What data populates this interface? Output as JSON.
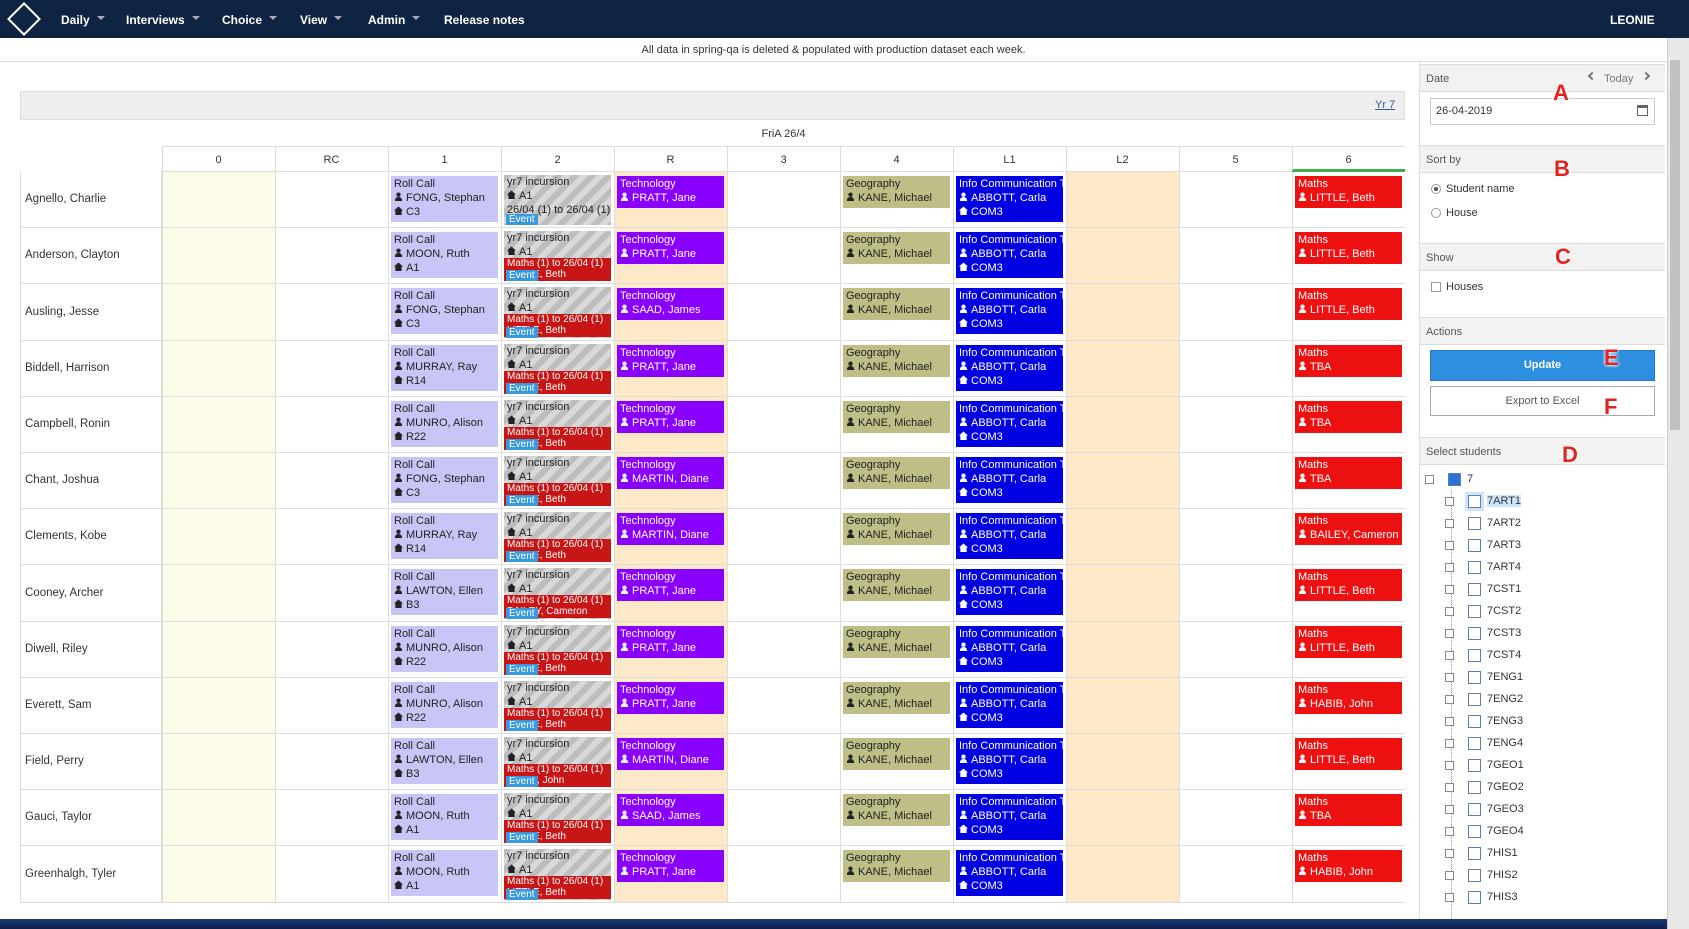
{
  "nav": {
    "items": [
      "Daily",
      "Interviews",
      "Choice",
      "View",
      "Admin",
      "Release notes"
    ],
    "user": "LEONIE"
  },
  "banner": "All data in spring-qa is deleted & populated with production dataset each week.",
  "grid": {
    "group_link": "Yr 7",
    "day": "FriA 26/4",
    "periods": [
      "0",
      "RC",
      "1",
      "2",
      "R",
      "3",
      "4",
      "L1",
      "L2",
      "5",
      "6"
    ],
    "rows": [
      {
        "name": "Agnello, Charlie",
        "cells": [
          null,
          null,
          {
            "kind": "rollcall",
            "lines": [
              "Roll Call",
              "FONG, Stephan",
              "C3"
            ]
          },
          {
            "kind": "incursion",
            "lines": [
              "yr7 incursion",
              "A1",
              "26/04 (1) to 26/04 (1)"
            ],
            "badge": "Event"
          },
          {
            "kind": "technology",
            "lines": [
              "Technology",
              "PRATT, Jane"
            ]
          },
          null,
          {
            "kind": "geography",
            "lines": [
              "Geography",
              "KANE, Michael"
            ]
          },
          {
            "kind": "ict",
            "lines": [
              "Info Communication Tech",
              "ABBOTT, Carla",
              "COM3"
            ]
          },
          null,
          null,
          {
            "kind": "maths",
            "lines": [
              "Maths",
              "LITTLE, Beth"
            ]
          }
        ]
      },
      {
        "name": "Anderson, Clayton",
        "cells": [
          null,
          null,
          {
            "kind": "rollcall",
            "lines": [
              "Roll Call",
              "MOON, Ruth",
              "A1"
            ]
          },
          {
            "kind": "incursion",
            "lines": [
              "yr7 incursion",
              "A1"
            ],
            "clash": [
              "Maths (1) to 26/04 (1)",
              "LITTLE, Beth"
            ],
            "badge": "Event"
          },
          {
            "kind": "technology",
            "lines": [
              "Technology",
              "PRATT, Jane"
            ]
          },
          null,
          {
            "kind": "geography",
            "lines": [
              "Geography",
              "KANE, Michael"
            ]
          },
          {
            "kind": "ict",
            "lines": [
              "Info Communication Tech",
              "ABBOTT, Carla",
              "COM3"
            ]
          },
          null,
          null,
          {
            "kind": "maths",
            "lines": [
              "Maths",
              "LITTLE, Beth"
            ]
          }
        ]
      },
      {
        "name": "Ausling, Jesse",
        "cells": [
          null,
          null,
          {
            "kind": "rollcall",
            "lines": [
              "Roll Call",
              "FONG, Stephan",
              "C3"
            ]
          },
          {
            "kind": "incursion",
            "lines": [
              "yr7 incursion",
              "A1"
            ],
            "clash": [
              "Maths (1) to 26/04 (1)",
              "LITTLE, Beth"
            ],
            "badge": "Event"
          },
          {
            "kind": "technology",
            "lines": [
              "Technology",
              "SAAD, James"
            ]
          },
          null,
          {
            "kind": "geography",
            "lines": [
              "Geography",
              "KANE, Michael"
            ]
          },
          {
            "kind": "ict",
            "lines": [
              "Info Communication Tech",
              "ABBOTT, Carla",
              "COM3"
            ]
          },
          null,
          null,
          {
            "kind": "maths",
            "lines": [
              "Maths",
              "LITTLE, Beth"
            ]
          }
        ]
      },
      {
        "name": "Biddell, Harrison",
        "cells": [
          null,
          null,
          {
            "kind": "rollcall",
            "lines": [
              "Roll Call",
              "MURRAY, Ray",
              "R14"
            ]
          },
          {
            "kind": "incursion",
            "lines": [
              "yr7 incursion",
              "A1"
            ],
            "clash": [
              "Maths (1) to 26/04 (1)",
              "LITTLE, Beth"
            ],
            "badge": "Event"
          },
          {
            "kind": "technology",
            "lines": [
              "Technology",
              "PRATT, Jane"
            ]
          },
          null,
          {
            "kind": "geography",
            "lines": [
              "Geography",
              "KANE, Michael"
            ]
          },
          {
            "kind": "ict",
            "lines": [
              "Info Communication Tech",
              "ABBOTT, Carla",
              "COM3"
            ]
          },
          null,
          null,
          {
            "kind": "maths",
            "lines": [
              "Maths",
              "TBA"
            ]
          }
        ]
      },
      {
        "name": "Campbell, Ronin",
        "cells": [
          null,
          null,
          {
            "kind": "rollcall",
            "lines": [
              "Roll Call",
              "MUNRO, Alison",
              "R22"
            ]
          },
          {
            "kind": "incursion",
            "lines": [
              "yr7 incursion",
              "A1"
            ],
            "clash": [
              "Maths (1) to 26/04 (1)",
              "LITTLE, Beth"
            ],
            "badge": "Event"
          },
          {
            "kind": "technology",
            "lines": [
              "Technology",
              "PRATT, Jane"
            ]
          },
          null,
          {
            "kind": "geography",
            "lines": [
              "Geography",
              "KANE, Michael"
            ]
          },
          {
            "kind": "ict",
            "lines": [
              "Info Communication Tech",
              "ABBOTT, Carla",
              "COM3"
            ]
          },
          null,
          null,
          {
            "kind": "maths",
            "lines": [
              "Maths",
              "TBA"
            ]
          }
        ]
      },
      {
        "name": "Chant, Joshua",
        "cells": [
          null,
          null,
          {
            "kind": "rollcall",
            "lines": [
              "Roll Call",
              "FONG, Stephan",
              "C3"
            ]
          },
          {
            "kind": "incursion",
            "lines": [
              "yr7 incursion",
              "A1"
            ],
            "clash": [
              "Maths (1) to 26/04 (1)",
              "LITTLE, Beth"
            ],
            "badge": "Event"
          },
          {
            "kind": "technology",
            "lines": [
              "Technology",
              "MARTIN, Diane"
            ]
          },
          null,
          {
            "kind": "geography",
            "lines": [
              "Geography",
              "KANE, Michael"
            ]
          },
          {
            "kind": "ict",
            "lines": [
              "Info Communication Tech",
              "ABBOTT, Carla",
              "COM3"
            ]
          },
          null,
          null,
          {
            "kind": "maths",
            "lines": [
              "Maths",
              "TBA"
            ]
          }
        ]
      },
      {
        "name": "Clements, Kobe",
        "cells": [
          null,
          null,
          {
            "kind": "rollcall",
            "lines": [
              "Roll Call",
              "MURRAY, Ray",
              "R14"
            ]
          },
          {
            "kind": "incursion",
            "lines": [
              "yr7 incursion",
              "A1"
            ],
            "clash": [
              "Maths (1) to 26/04 (1)",
              "LITTLE, Beth"
            ],
            "badge": "Event"
          },
          {
            "kind": "technology",
            "lines": [
              "Technology",
              "MARTIN, Diane"
            ]
          },
          null,
          {
            "kind": "geography",
            "lines": [
              "Geography",
              "KANE, Michael"
            ]
          },
          {
            "kind": "ict",
            "lines": [
              "Info Communication Tech",
              "ABBOTT, Carla",
              "COM3"
            ]
          },
          null,
          null,
          {
            "kind": "maths",
            "lines": [
              "Maths",
              "BAILEY, Cameron"
            ]
          }
        ]
      },
      {
        "name": "Cooney, Archer",
        "cells": [
          null,
          null,
          {
            "kind": "rollcall",
            "lines": [
              "Roll Call",
              "LAWTON, Ellen",
              "B3"
            ]
          },
          {
            "kind": "incursion",
            "lines": [
              "yr7 incursion",
              "A1"
            ],
            "clash": [
              "Maths (1) to 26/04 (1)",
              "BAILEY, Cameron"
            ],
            "badge": "Event"
          },
          {
            "kind": "technology",
            "lines": [
              "Technology",
              "PRATT, Jane"
            ]
          },
          null,
          {
            "kind": "geography",
            "lines": [
              "Geography",
              "KANE, Michael"
            ]
          },
          {
            "kind": "ict",
            "lines": [
              "Info Communication Tech",
              "ABBOTT, Carla",
              "COM3"
            ]
          },
          null,
          null,
          {
            "kind": "maths",
            "lines": [
              "Maths",
              "LITTLE, Beth"
            ]
          }
        ]
      },
      {
        "name": "Diwell, Riley",
        "cells": [
          null,
          null,
          {
            "kind": "rollcall",
            "lines": [
              "Roll Call",
              "MUNRO, Alison",
              "R22"
            ]
          },
          {
            "kind": "incursion",
            "lines": [
              "yr7 incursion",
              "A1"
            ],
            "clash": [
              "Maths (1) to 26/04 (1)",
              "LITTLE, Beth"
            ],
            "badge": "Event"
          },
          {
            "kind": "technology",
            "lines": [
              "Technology",
              "PRATT, Jane"
            ]
          },
          null,
          {
            "kind": "geography",
            "lines": [
              "Geography",
              "KANE, Michael"
            ]
          },
          {
            "kind": "ict",
            "lines": [
              "Info Communication Tech",
              "ABBOTT, Carla",
              "COM3"
            ]
          },
          null,
          null,
          {
            "kind": "maths",
            "lines": [
              "Maths",
              "LITTLE, Beth"
            ]
          }
        ]
      },
      {
        "name": "Everett, Sam",
        "cells": [
          null,
          null,
          {
            "kind": "rollcall",
            "lines": [
              "Roll Call",
              "MUNRO, Alison",
              "R22"
            ]
          },
          {
            "kind": "incursion",
            "lines": [
              "yr7 incursion",
              "A1"
            ],
            "clash": [
              "Maths (1) to 26/04 (1)",
              "LITTLE, Beth"
            ],
            "badge": "Event"
          },
          {
            "kind": "technology",
            "lines": [
              "Technology",
              "PRATT, Jane"
            ]
          },
          null,
          {
            "kind": "geography",
            "lines": [
              "Geography",
              "KANE, Michael"
            ]
          },
          {
            "kind": "ict",
            "lines": [
              "Info Communication Tech",
              "ABBOTT, Carla",
              "COM3"
            ]
          },
          null,
          null,
          {
            "kind": "maths",
            "lines": [
              "Maths",
              "HABIB, John"
            ]
          }
        ]
      },
      {
        "name": "Field, Perry",
        "cells": [
          null,
          null,
          {
            "kind": "rollcall",
            "lines": [
              "Roll Call",
              "LAWTON, Ellen",
              "B3"
            ]
          },
          {
            "kind": "incursion",
            "lines": [
              "yr7 incursion",
              "A1"
            ],
            "clash": [
              "Maths (1) to 26/04 (1)",
              "HABIB, John"
            ],
            "badge": "Event"
          },
          {
            "kind": "technology",
            "lines": [
              "Technology",
              "MARTIN, Diane"
            ]
          },
          null,
          {
            "kind": "geography",
            "lines": [
              "Geography",
              "KANE, Michael"
            ]
          },
          {
            "kind": "ict",
            "lines": [
              "Info Communication Tech",
              "ABBOTT, Carla",
              "COM3"
            ]
          },
          null,
          null,
          {
            "kind": "maths",
            "lines": [
              "Maths",
              "LITTLE, Beth"
            ]
          }
        ]
      },
      {
        "name": "Gauci, Taylor",
        "cells": [
          null,
          null,
          {
            "kind": "rollcall",
            "lines": [
              "Roll Call",
              "MOON, Ruth",
              "A1"
            ]
          },
          {
            "kind": "incursion",
            "lines": [
              "yr7 incursion",
              "A1"
            ],
            "clash": [
              "Maths (1) to 26/04 (1)",
              "LITTLE, Beth"
            ],
            "badge": "Event"
          },
          {
            "kind": "technology",
            "lines": [
              "Technology",
              "SAAD, James"
            ]
          },
          null,
          {
            "kind": "geography",
            "lines": [
              "Geography",
              "KANE, Michael"
            ]
          },
          {
            "kind": "ict",
            "lines": [
              "Info Communication Tech",
              "ABBOTT, Carla",
              "COM3"
            ]
          },
          null,
          null,
          {
            "kind": "maths",
            "lines": [
              "Maths",
              "TBA"
            ]
          }
        ]
      },
      {
        "name": "Greenhalgh, Tyler",
        "cells": [
          null,
          null,
          {
            "kind": "rollcall",
            "lines": [
              "Roll Call",
              "MOON, Ruth",
              "A1"
            ]
          },
          {
            "kind": "incursion",
            "lines": [
              "yr7 incursion",
              "A1"
            ],
            "clash": [
              "Maths (1) to 26/04 (1)",
              "LITTLE, Beth"
            ],
            "badge": "Event"
          },
          {
            "kind": "technology",
            "lines": [
              "Technology",
              "PRATT, Jane"
            ]
          },
          null,
          {
            "kind": "geography",
            "lines": [
              "Geography",
              "KANE, Michael"
            ]
          },
          {
            "kind": "ict",
            "lines": [
              "Info Communication Tech",
              "ABBOTT, Carla",
              "COM3"
            ]
          },
          null,
          null,
          {
            "kind": "maths",
            "lines": [
              "Maths",
              "HABIB, John"
            ]
          }
        ]
      }
    ]
  },
  "sidebar": {
    "date_label": "Date",
    "today": "Today",
    "date": "26-04-2019",
    "sort_label": "Sort by",
    "sort_options": [
      "Student name",
      "House"
    ],
    "show_label": "Show",
    "show_options": [
      "Houses"
    ],
    "actions_label": "Actions",
    "update": "Update",
    "export": "Export to Excel",
    "select_label": "Select students",
    "tree_root": "7",
    "tree_items": [
      "7ART1",
      "7ART2",
      "7ART3",
      "7ART4",
      "7CST1",
      "7CST2",
      "7CST3",
      "7CST4",
      "7ENG1",
      "7ENG2",
      "7ENG3",
      "7ENG4",
      "7GEO1",
      "7GEO2",
      "7GEO3",
      "7GEO4",
      "7HIS1",
      "7HIS2",
      "7HIS3"
    ]
  },
  "annotations": [
    "A",
    "B",
    "C",
    "D",
    "E",
    "F"
  ]
}
